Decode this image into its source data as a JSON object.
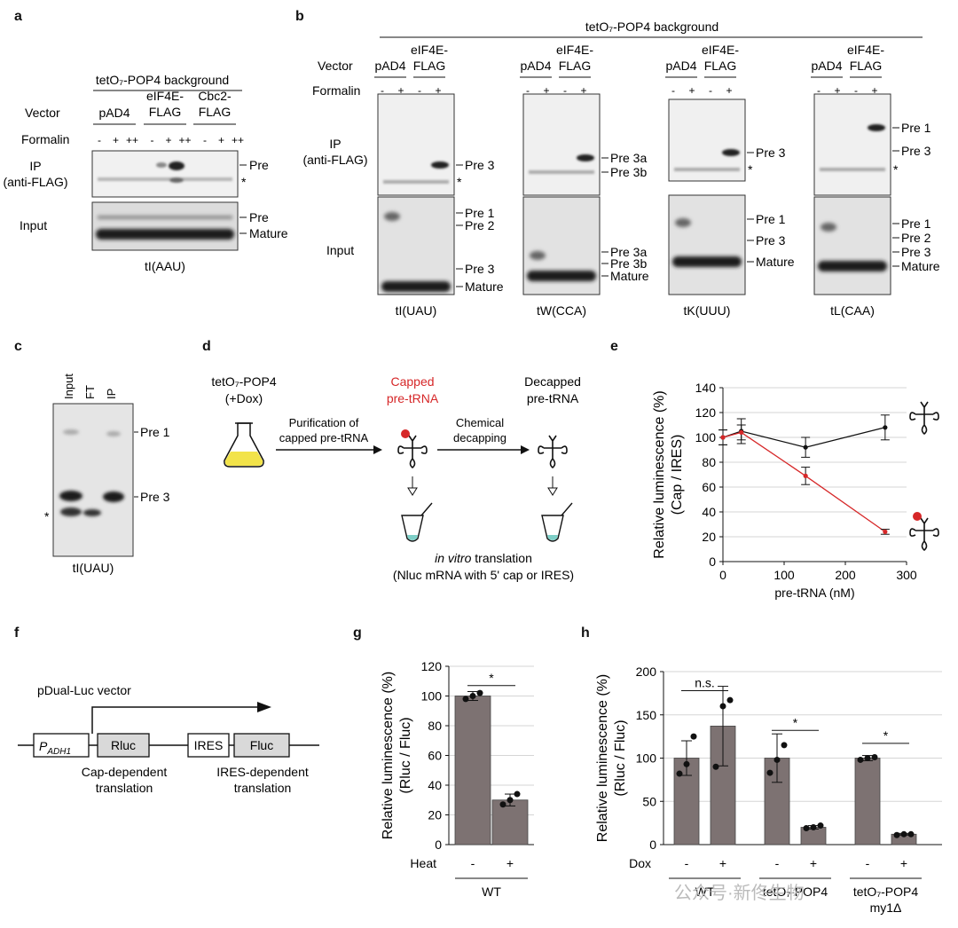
{
  "panel_letters": {
    "a": "a",
    "b": "b",
    "c": "c",
    "d": "d",
    "e": "e",
    "f": "f",
    "g": "g",
    "h": "h"
  },
  "panel_a": {
    "background": "tetO₇-POP4 background",
    "vector_label": "Vector",
    "vectors": [
      "pAD4",
      "eIF4E-\nFLAG",
      "Cbc2-\nFLAG"
    ],
    "formalin_label": "Formalin",
    "formalin_marks": [
      "-",
      "+",
      "++",
      "-",
      "+",
      "++",
      "-",
      "+",
      "++"
    ],
    "ip_label": "IP\n(anti-FLAG)",
    "input_label": "Input",
    "ip_bands": [
      "Pre",
      "*"
    ],
    "input_bands": [
      "Pre",
      "Mature"
    ],
    "trna": "tI(AAU)"
  },
  "panel_b": {
    "background": "tetO₇-POP4 background",
    "vector_label": "Vector",
    "formalin_label": "Formalin",
    "vectors": [
      "pAD4",
      "eIF4E-\nFLAG"
    ],
    "formalin_marks": [
      "-",
      "+",
      "-",
      "+"
    ],
    "ip_label": "IP\n(anti-FLAG)",
    "input_label": "Input",
    "blots": [
      {
        "trna": "tI(UAU)",
        "ip_bands": [
          "Pre 3",
          "*"
        ],
        "input_bands": [
          "Pre 1",
          "Pre 2",
          "Pre 3",
          "Mature"
        ]
      },
      {
        "trna": "tW(CCA)",
        "ip_bands": [
          "Pre 3a",
          "Pre 3b"
        ],
        "input_bands": [
          "Pre 3a",
          "Pre 3b",
          "Mature"
        ]
      },
      {
        "trna": "tK(UUU)",
        "ip_bands": [
          "Pre 3",
          "*"
        ],
        "input_bands": [
          "Pre 1",
          "Pre 3",
          "Mature"
        ]
      },
      {
        "trna": "tL(CAA)",
        "ip_bands": [
          "Pre 1",
          "Pre 3",
          "*"
        ],
        "input_bands": [
          "Pre 1",
          "Pre 2",
          "Pre 3",
          "Mature"
        ]
      }
    ]
  },
  "panel_c": {
    "lanes": [
      "Input",
      "FT",
      "IP"
    ],
    "bands": [
      "Pre 1",
      "Pre 3"
    ],
    "star": "*",
    "trna": "tI(UAU)"
  },
  "panel_d": {
    "strain": "tetO₇-POP4",
    "dox": "(+Dox)",
    "capped_label": "Capped\npre-tRNA",
    "decapped_label": "Decapped\npre-tRNA",
    "step1": "Purification of\ncapped pre-tRNA",
    "step2": "Chemical\ndecapping",
    "translation_italic": "in vitro",
    "translation_rest": " translation",
    "translation_note": "(Nluc mRNA with 5' cap or IRES)",
    "colors": {
      "red": "#d62728",
      "culture": "#f2e34a"
    }
  },
  "panel_f": {
    "title": "pDual-Luc vector",
    "promoter": "P",
    "promoter_sub": "ADH1",
    "genes": [
      "Rluc",
      "IRES",
      "Fluc"
    ],
    "cap_text": "Cap-dependent\ntranslation",
    "ires_text": "IRES-dependent\ntranslation"
  },
  "chart_data": [
    {
      "panel": "e",
      "type": "line",
      "xlabel": "pre-tRNA (nM)",
      "ylabel": "Relative luminescence (%)\n(Cap / IRES)",
      "xlim": [
        0,
        300
      ],
      "ylim": [
        0,
        140
      ],
      "xticks": [
        0,
        100,
        200,
        300
      ],
      "yticks": [
        0,
        20,
        40,
        60,
        80,
        100,
        120,
        140
      ],
      "grid": "horizontal",
      "series": [
        {
          "color": "#111111",
          "x": [
            0,
            30,
            135,
            265
          ],
          "y": [
            100,
            105,
            92,
            108
          ],
          "err": [
            6,
            10,
            8,
            10
          ]
        },
        {
          "color": "#d62728",
          "x": [
            0,
            30,
            135,
            265
          ],
          "y": [
            100,
            104,
            69,
            24
          ],
          "err": [
            6,
            6,
            7,
            2
          ]
        }
      ]
    },
    {
      "panel": "g",
      "type": "bar",
      "ylabel": "Relative luminescence (%)\n(Rluc / Fluc)",
      "ylim": [
        0,
        120
      ],
      "yticks": [
        0,
        20,
        40,
        60,
        80,
        100,
        120
      ],
      "x_row_label": "Heat",
      "categories": [
        "-",
        "+"
      ],
      "values": [
        100,
        30
      ],
      "err": [
        3,
        4
      ],
      "points": [
        [
          98,
          100,
          102
        ],
        [
          27,
          30,
          34
        ]
      ],
      "group_labels": [
        "WT"
      ],
      "significance": [
        {
          "label": "*",
          "between": [
            0,
            1
          ],
          "y": 107
        }
      ],
      "bar_color": "#7d7272"
    },
    {
      "panel": "h",
      "type": "bar",
      "ylabel": "Relative luminescence (%)\n(Rluc / Fluc)",
      "ylim": [
        0,
        200
      ],
      "yticks": [
        0,
        50,
        100,
        150,
        200
      ],
      "x_row_label": "Dox",
      "categories": [
        "-",
        "+",
        "-",
        "+",
        "-",
        "+"
      ],
      "values": [
        100,
        137,
        100,
        20,
        100,
        12
      ],
      "err": [
        20,
        46,
        28,
        2,
        3,
        1
      ],
      "points": [
        [
          82,
          93,
          125
        ],
        [
          90,
          160,
          167
        ],
        [
          83,
          98,
          115
        ],
        [
          19,
          20,
          22
        ],
        [
          98,
          100,
          101
        ],
        [
          11,
          12,
          12
        ]
      ],
      "group_labels": [
        "WT",
        "tetO₇-POP4",
        "tetO₇-POP4\nmy1Δ"
      ],
      "significance": [
        {
          "label": "n.s.",
          "between": [
            0,
            1
          ],
          "y": 178
        },
        {
          "label": "*",
          "between": [
            2,
            3
          ],
          "y": 132
        },
        {
          "label": "*",
          "between": [
            4,
            5
          ],
          "y": 117
        }
      ],
      "bar_color": "#7d7272"
    }
  ],
  "watermark": "公众号·新佟生物"
}
